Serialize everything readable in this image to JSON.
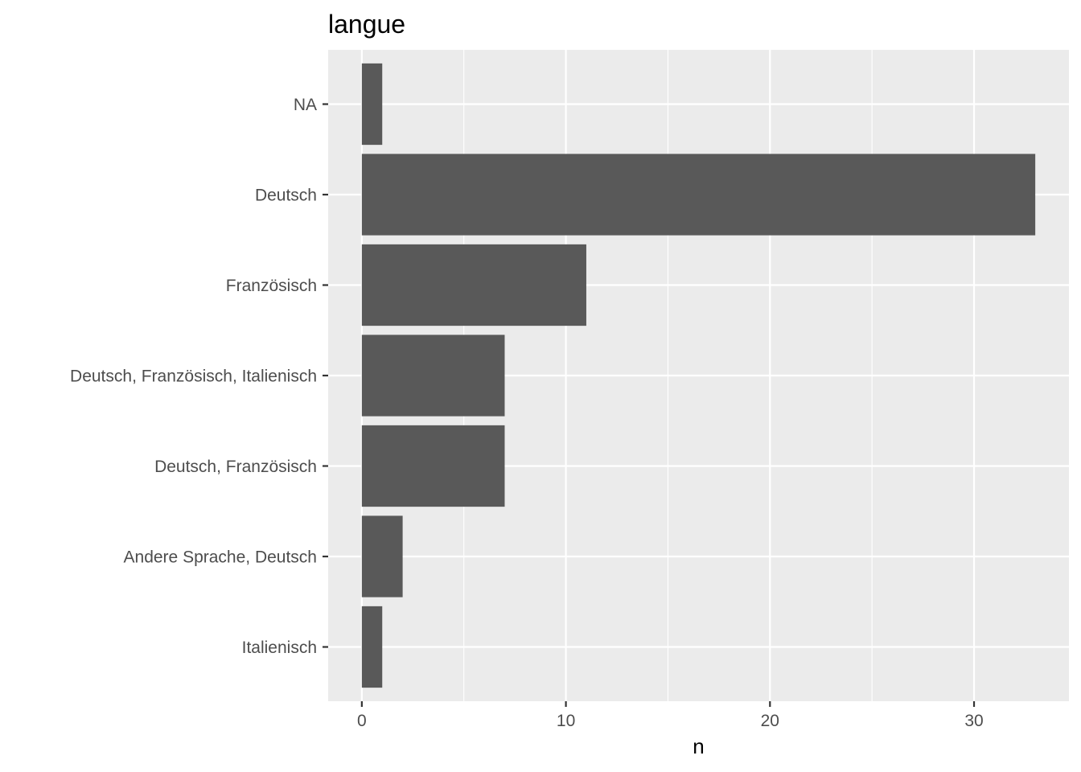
{
  "chart_data": {
    "type": "bar",
    "orientation": "horizontal",
    "title": "langue",
    "xlabel": "n",
    "ylabel": "",
    "categories": [
      "NA",
      "Deutsch",
      "Französisch",
      "Deutsch, Französisch, Italienisch",
      "Deutsch, Französisch",
      "Andere Sprache, Deutsch",
      "Italienisch"
    ],
    "values": [
      1,
      33,
      11,
      7,
      7,
      2,
      1
    ],
    "xlim": [
      -1.65,
      34.65
    ],
    "x_ticks": [
      0,
      10,
      20,
      30
    ],
    "x_minor_ticks": [
      5,
      15,
      25
    ],
    "grid": true,
    "legend": "none",
    "colors": {
      "bar": "#595959",
      "panel": "#ebebeb",
      "grid": "#ffffff",
      "tick_text": "#4d4d4d",
      "tick_mark": "#333333",
      "title": "#000000"
    }
  }
}
